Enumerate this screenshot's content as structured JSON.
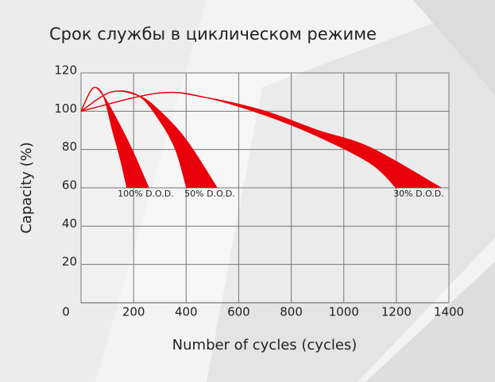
{
  "chart_data": {
    "type": "band",
    "title": "Срок службы в циклическом режиме",
    "x_label": "Number of cycles (cycles)",
    "y_label": "Capacity (%)",
    "xlim": [
      0,
      1400
    ],
    "xticks": [
      0,
      200,
      400,
      600,
      800,
      1000,
      1200,
      1400
    ],
    "ylim": [
      0,
      120
    ],
    "yticks": [
      20,
      40,
      60,
      80,
      100,
      120
    ],
    "grid": true,
    "series": [
      {
        "name": "100% D.O.D.",
        "color": "#e8000b",
        "outer_x": [
          0,
          45,
          85,
          150,
          200,
          257
        ],
        "outer": [
          100,
          112,
          108,
          92,
          78,
          60
        ],
        "inner_x": [
          0,
          45,
          85,
          120,
          150,
          175
        ],
        "inner": [
          100,
          112,
          108,
          90,
          75,
          60
        ]
      },
      {
        "name": "50% D.O.D.",
        "color": "#e8000b",
        "outer_x": [
          0,
          115,
          220,
          300,
          400,
          517
        ],
        "outer": [
          100,
          110,
          108,
          100,
          85,
          60
        ],
        "inner_x": [
          0,
          115,
          220,
          300,
          360,
          402
        ],
        "inner": [
          100,
          110,
          108,
          95,
          80,
          60
        ]
      },
      {
        "name": "30% D.O.D.",
        "color": "#e8000b",
        "outer_x": [
          0,
          296,
          480,
          700,
          900,
          1100,
          1370
        ],
        "outer": [
          100,
          109.5,
          107,
          100,
          90,
          81,
          60
        ],
        "inner_x": [
          0,
          296,
          480,
          700,
          900,
          1100,
          1200
        ],
        "inner": [
          100,
          109.5,
          107,
          98,
          87,
          73,
          60
        ]
      }
    ]
  }
}
